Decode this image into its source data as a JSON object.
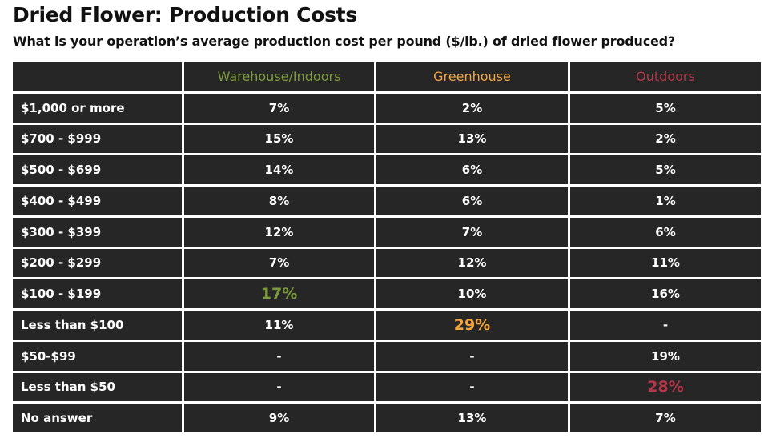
{
  "title": "Dried Flower: Production Costs",
  "subtitle": "What is your operation’s average production cost per pound ($/lb.) of dried flower produced?",
  "table": {
    "columns": [
      "",
      "Warehouse/Indoors",
      "Greenhouse",
      "Outdoors"
    ],
    "column_colors": [
      "#7d9a3d",
      "#f2a641",
      "#b5374a"
    ],
    "rows": [
      {
        "label": "$1,000 or more",
        "values": [
          "7%",
          "2%",
          "5%"
        ]
      },
      {
        "label": "$700 - $999",
        "values": [
          "15%",
          "13%",
          "2%"
        ]
      },
      {
        "label": "$500 - $699",
        "values": [
          "14%",
          "6%",
          "5%"
        ]
      },
      {
        "label": "$400 - $499",
        "values": [
          "8%",
          "6%",
          "1%"
        ]
      },
      {
        "label": "$300 - $399",
        "values": [
          "12%",
          "7%",
          "6%"
        ]
      },
      {
        "label": "$200 - $299",
        "values": [
          "7%",
          "12%",
          "11%"
        ]
      },
      {
        "label": "$100 - $199",
        "values": [
          "17%",
          "10%",
          "16%"
        ],
        "highlight": 0
      },
      {
        "label": "Less than $100",
        "values": [
          "11%",
          "29%",
          "-"
        ],
        "highlight": 1
      },
      {
        "label": "$50-$99",
        "values": [
          "-",
          "-",
          "19%"
        ]
      },
      {
        "label": "Less than $50",
        "values": [
          "-",
          "-",
          "28%"
        ],
        "highlight": 2
      },
      {
        "label": "No answer",
        "values": [
          "9%",
          "13%",
          "7%"
        ]
      }
    ]
  }
}
